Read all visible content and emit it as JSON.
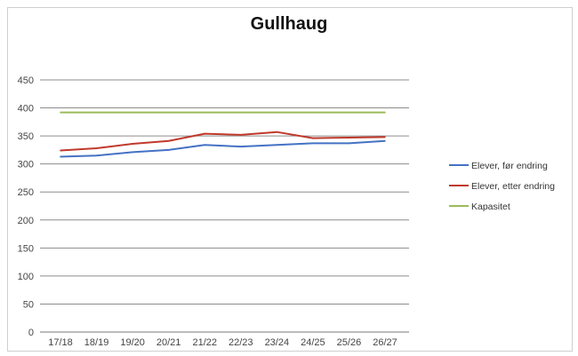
{
  "chart_data": {
    "type": "line",
    "title": "Gullhaug",
    "xlabel": "",
    "ylabel": "",
    "categories": [
      "17/18",
      "18/19",
      "19/20",
      "20/21",
      "21/22",
      "22/23",
      "23/24",
      "24/25",
      "25/26",
      "26/27"
    ],
    "ylim": [
      0,
      450
    ],
    "yticks": [
      0,
      50,
      100,
      150,
      200,
      250,
      300,
      350,
      400,
      450
    ],
    "grid": true,
    "legend_position": "right",
    "series": [
      {
        "name": "Elever, før endring",
        "color": "#4472C4",
        "values": [
          313,
          315,
          321,
          325,
          334,
          331,
          334,
          337,
          337,
          341
        ]
      },
      {
        "name": "Elever, etter endring",
        "color": "#C0392B",
        "values": [
          324,
          328,
          336,
          341,
          354,
          352,
          357,
          346,
          347,
          348
        ]
      },
      {
        "name": "Kapasitet",
        "color": "#9BBB59",
        "values": [
          392,
          392,
          392,
          392,
          392,
          392,
          392,
          392,
          392,
          392
        ]
      }
    ]
  }
}
